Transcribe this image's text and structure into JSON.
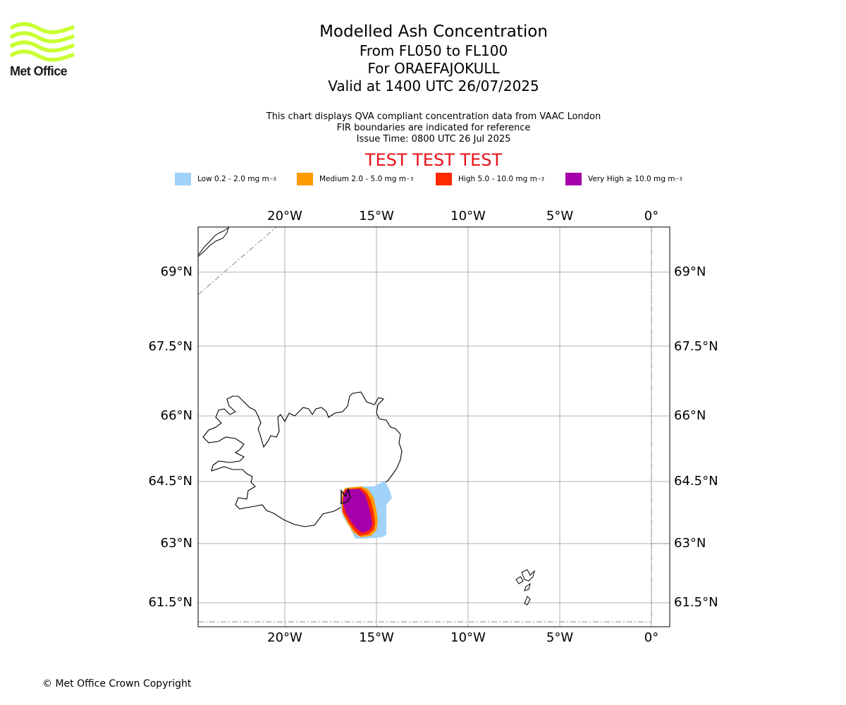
{
  "logo": {
    "text": "Met Office",
    "accent_color": "#c8ff33"
  },
  "title": "Modelled Ash Concentration",
  "flight_levels": "From FL050 to FL100",
  "volcano": "For ORAEFAJOKULL",
  "valid_time": "Valid at 1400 UTC 26/07/2025",
  "info_lines": [
    "This chart displays QVA compliant concentration data from VAAC London",
    "FIR boundaries are indicated for reference",
    "Issue Time: 0800 UTC 26 Jul 2025"
  ],
  "test_banner": "TEST TEST TEST",
  "legend": [
    {
      "label": "Low 0.2 - 2.0 mg m",
      "sup": "−3",
      "color": "#a0d2fa"
    },
    {
      "label": "Medium 2.0 - 5.0 mg m",
      "sup": "−3",
      "color": "#ff9a00"
    },
    {
      "label": "High 5.0 - 10.0 mg m",
      "sup": "−3",
      "color": "#ff2a00"
    },
    {
      "label": "Very High ≥ 10.0 mg m",
      "sup": "−3",
      "color": "#a600aa"
    }
  ],
  "map": {
    "lon_labels": [
      "20°W",
      "15°W",
      "10°W",
      "5°W",
      "0°"
    ],
    "lat_labels": [
      "69°N",
      "67.5°N",
      "66°N",
      "64.5°N",
      "63°N",
      "61.5°N"
    ]
  },
  "copyright": "© Met Office Crown Copyright"
}
